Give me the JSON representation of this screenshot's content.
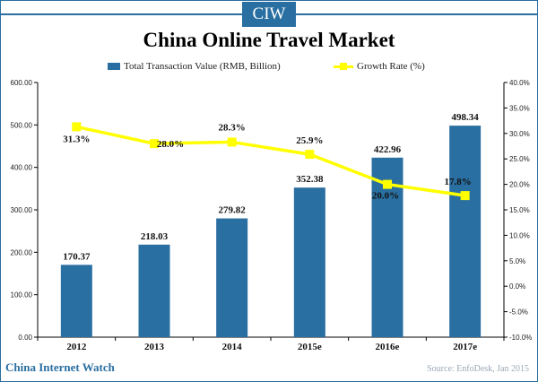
{
  "brand": "CIW",
  "footer": {
    "left": "China Internet Watch",
    "source": "Source: EnfoDesk, Jan 2015"
  },
  "colors": {
    "accent": "#2a6fa1",
    "bar": "#2a6fa1",
    "line": "#ffff00"
  },
  "chart_data": {
    "type": "bar",
    "title": "China Online Travel Market",
    "categories": [
      "2012",
      "2013",
      "2014",
      "2015e",
      "2016e",
      "2017e"
    ],
    "series": [
      {
        "name": "Total Transaction Value (RMB, Billion)",
        "type": "bar",
        "axis": "left",
        "values": [
          170.37,
          218.03,
          279.82,
          352.38,
          422.96,
          498.34
        ],
        "labels": [
          "170.37",
          "218.03",
          "279.82",
          "352.38",
          "422.96",
          "498.34"
        ]
      },
      {
        "name": "Growth Rate (%)",
        "type": "line",
        "axis": "right",
        "values": [
          31.3,
          28.0,
          28.3,
          25.9,
          20.0,
          17.8
        ],
        "labels": [
          "31.3%",
          "28.0%",
          "28.3%",
          "25.9%",
          "20.0%",
          "17.8%"
        ]
      }
    ],
    "y_left": {
      "min": 0,
      "max": 600,
      "ticks": [
        "0.00",
        "100.00",
        "200.00",
        "300.00",
        "400.00",
        "500.00",
        "600.00"
      ]
    },
    "y_right": {
      "min": -10,
      "max": 40,
      "ticks": [
        "-10.0%",
        "-5.0%",
        "0.0%",
        "5.0%",
        "10.0%",
        "15.0%",
        "20.0%",
        "25.0%",
        "30.0%",
        "35.0%",
        "40.0%"
      ]
    },
    "grid": false,
    "legend_position": "top"
  }
}
